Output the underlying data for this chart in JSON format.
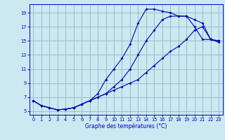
{
  "xlabel": "Graphe des températures (°C)",
  "bg_color": "#cce8f0",
  "line_color": "#0000bb",
  "grid_color": "#99bbcc",
  "ylim": [
    4.5,
    20.2
  ],
  "xlim": [
    -0.5,
    23.5
  ],
  "yticks": [
    5,
    7,
    9,
    11,
    13,
    15,
    17,
    19
  ],
  "xticks": [
    0,
    1,
    2,
    3,
    4,
    5,
    6,
    7,
    8,
    9,
    10,
    11,
    12,
    13,
    14,
    15,
    16,
    17,
    18,
    19,
    20,
    21,
    22,
    23
  ],
  "line1_x": [
    0,
    1,
    2,
    3,
    4,
    5,
    6,
    7,
    8,
    9,
    10,
    11,
    12,
    13,
    14,
    15,
    16,
    17,
    18,
    19,
    20,
    21,
    22,
    23
  ],
  "line1_y": [
    6.5,
    5.8,
    5.5,
    5.2,
    5.3,
    5.5,
    6.0,
    6.5,
    7.5,
    9.5,
    11.0,
    12.5,
    14.5,
    17.5,
    19.5,
    19.5,
    19.2,
    19.0,
    18.5,
    18.5,
    17.0,
    15.2,
    15.2,
    15.0
  ],
  "line2_x": [
    0,
    1,
    2,
    3,
    4,
    5,
    6,
    7,
    8,
    9,
    10,
    11,
    12,
    13,
    14,
    15,
    16,
    17,
    18,
    19,
    20,
    21,
    22,
    23
  ],
  "line2_y": [
    6.5,
    5.8,
    5.5,
    5.2,
    5.3,
    5.5,
    6.0,
    6.5,
    7.0,
    7.5,
    8.0,
    8.5,
    9.0,
    9.5,
    10.5,
    11.5,
    12.5,
    13.5,
    14.2,
    15.2,
    16.5,
    17.0,
    15.2,
    15.0
  ],
  "line3_x": [
    0,
    1,
    2,
    3,
    4,
    5,
    6,
    7,
    8,
    9,
    10,
    11,
    12,
    13,
    14,
    15,
    16,
    17,
    18,
    19,
    20,
    21,
    22,
    23
  ],
  "line3_y": [
    6.5,
    5.8,
    5.5,
    5.2,
    5.3,
    5.5,
    6.0,
    6.5,
    7.0,
    7.5,
    8.5,
    9.5,
    11.0,
    13.0,
    15.0,
    16.5,
    18.0,
    18.5,
    18.5,
    18.5,
    18.0,
    17.5,
    15.2,
    14.8
  ]
}
